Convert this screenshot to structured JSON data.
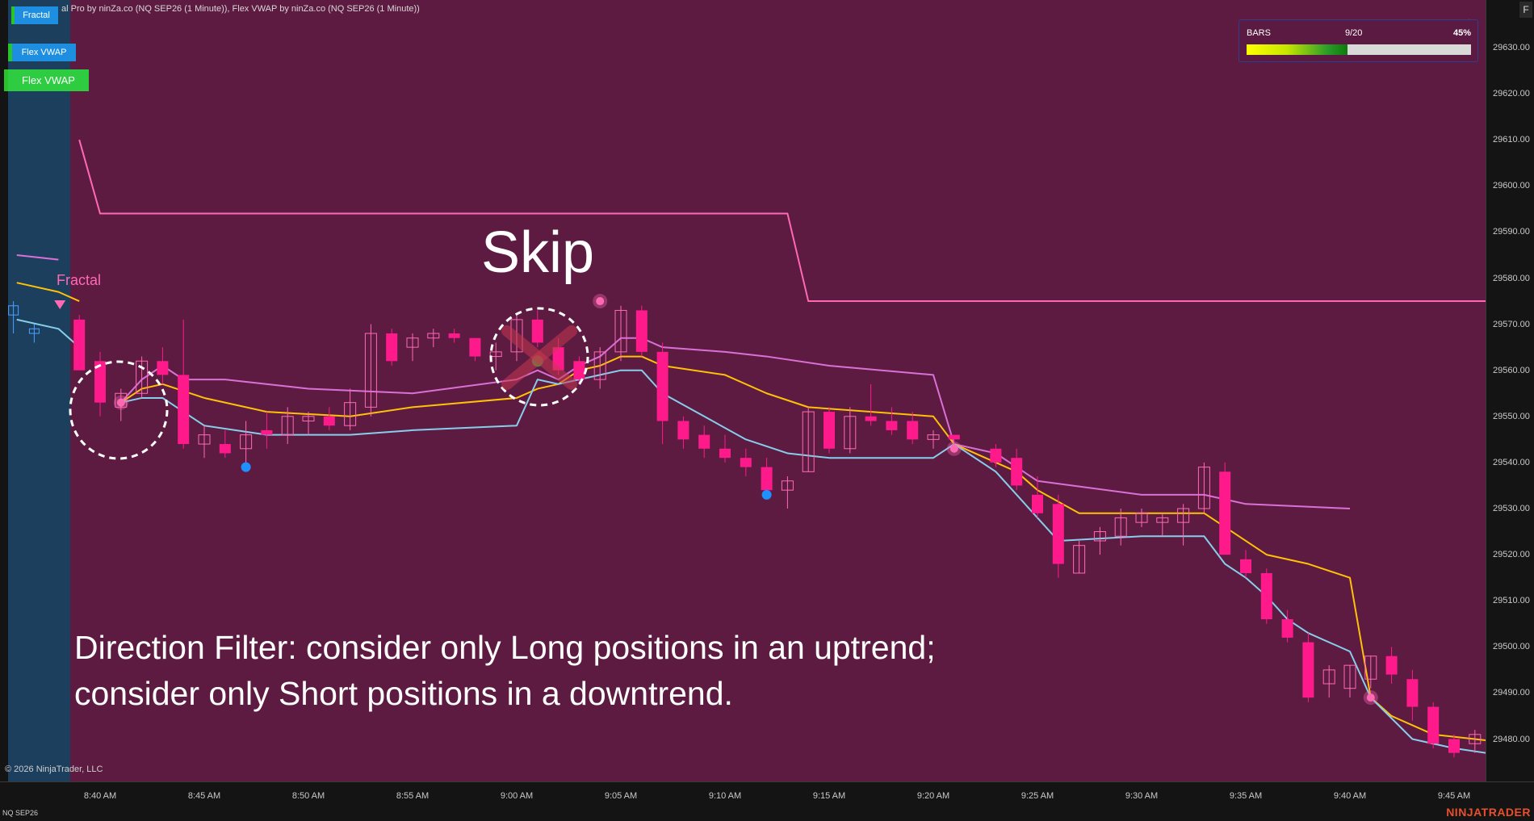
{
  "window": {
    "title": "al Pro by ninZa.co (NQ SEP26 (1 Minute)), Flex VWAP by ninZa.co (NQ SEP26 (1 Minute))",
    "copyright": "© 2026 NinjaTrader, LLC",
    "instrument": "NQ SEP26",
    "brand": "NINJATRADER",
    "corner_button": "F"
  },
  "indicator_buttons": [
    {
      "label": "Fractal"
    },
    {
      "label": "Flex VWAP"
    },
    {
      "label": "Flex VWAP"
    }
  ],
  "bars_panel": {
    "label": "BARS",
    "count": "9/20",
    "percent_text": "45%",
    "progress_fraction": 0.45
  },
  "annotations": {
    "skip": "Skip",
    "fractal": "Fractal",
    "direction_line1": "Direction Filter: consider only Long positions in an uptrend;",
    "direction_line2": "consider only Short positions in a downtrend."
  },
  "colors": {
    "background": "#5e1b42",
    "session_shade": "#1c3f5e",
    "bear_candle": "#ff1a8c",
    "bull_candle": "#ff69b4",
    "vwap_upper": "#da70d6",
    "vwap_mid": "#ffc107",
    "vwap_lower": "#87ceeb",
    "fractal_line": "#ff69b4",
    "blue_dot": "#1e90ff"
  },
  "chart_data": {
    "type": "candlestick",
    "x_tick_labels": [
      "8:40 AM",
      "8:45 AM",
      "8:50 AM",
      "8:55 AM",
      "9:00 AM",
      "9:05 AM",
      "9:10 AM",
      "9:15 AM",
      "9:20 AM",
      "9:25 AM",
      "9:30 AM",
      "9:35 AM",
      "9:40 AM",
      "9:45 AM"
    ],
    "y_tick_labels": [
      "29630.00",
      "29620.00",
      "29610.00",
      "29600.00",
      "29590.00",
      "29580.00",
      "29570.00",
      "29560.00",
      "29550.00",
      "29540.00",
      "29530.00",
      "29520.00",
      "29510.00",
      "29500.00",
      "29490.00",
      "29480.00"
    ],
    "ylim": [
      29474,
      29636
    ],
    "candles": [
      {
        "t": "8:39",
        "o": 29571,
        "h": 29572,
        "l": 29560,
        "c": 29560
      },
      {
        "t": "8:40",
        "o": 29562,
        "h": 29564,
        "l": 29550,
        "c": 29553
      },
      {
        "t": "8:41",
        "o": 29552,
        "h": 29556,
        "l": 29549,
        "c": 29555
      },
      {
        "t": "8:42",
        "o": 29555,
        "h": 29563,
        "l": 29554,
        "c": 29562
      },
      {
        "t": "8:43",
        "o": 29562,
        "h": 29565,
        "l": 29557,
        "c": 29559
      },
      {
        "t": "8:44",
        "o": 29559,
        "h": 29571,
        "l": 29543,
        "c": 29544
      },
      {
        "t": "8:45",
        "o": 29544,
        "h": 29548,
        "l": 29541,
        "c": 29546
      },
      {
        "t": "8:46",
        "o": 29544,
        "h": 29547,
        "l": 29541,
        "c": 29542
      },
      {
        "t": "8:47",
        "o": 29543,
        "h": 29549,
        "l": 29540,
        "c": 29546
      },
      {
        "t": "8:48",
        "o": 29547,
        "h": 29551,
        "l": 29543,
        "c": 29546
      },
      {
        "t": "8:49",
        "o": 29546,
        "h": 29552,
        "l": 29544,
        "c": 29550
      },
      {
        "t": "8:50",
        "o": 29549,
        "h": 29551,
        "l": 29546,
        "c": 29550
      },
      {
        "t": "8:51",
        "o": 29550,
        "h": 29552,
        "l": 29547,
        "c": 29548
      },
      {
        "t": "8:52",
        "o": 29548,
        "h": 29556,
        "l": 29547,
        "c": 29553
      },
      {
        "t": "8:53",
        "o": 29552,
        "h": 29570,
        "l": 29550,
        "c": 29568
      },
      {
        "t": "8:54",
        "o": 29568,
        "h": 29569,
        "l": 29561,
        "c": 29562
      },
      {
        "t": "8:55",
        "o": 29565,
        "h": 29568,
        "l": 29562,
        "c": 29567
      },
      {
        "t": "8:56",
        "o": 29567,
        "h": 29569,
        "l": 29565,
        "c": 29568
      },
      {
        "t": "8:57",
        "o": 29568,
        "h": 29569,
        "l": 29566,
        "c": 29567
      },
      {
        "t": "8:58",
        "o": 29567,
        "h": 29567,
        "l": 29562,
        "c": 29563
      },
      {
        "t": "8:59",
        "o": 29563,
        "h": 29566,
        "l": 29560,
        "c": 29564
      },
      {
        "t": "9:00",
        "o": 29564,
        "h": 29572,
        "l": 29562,
        "c": 29571
      },
      {
        "t": "9:01",
        "o": 29571,
        "h": 29573,
        "l": 29565,
        "c": 29566
      },
      {
        "t": "9:02",
        "o": 29565,
        "h": 29567,
        "l": 29559,
        "c": 29560
      },
      {
        "t": "9:03",
        "o": 29562,
        "h": 29563,
        "l": 29557,
        "c": 29558
      },
      {
        "t": "9:04",
        "o": 29558,
        "h": 29565,
        "l": 29556,
        "c": 29564
      },
      {
        "t": "9:05",
        "o": 29564,
        "h": 29574,
        "l": 29562,
        "c": 29573
      },
      {
        "t": "9:06",
        "o": 29573,
        "h": 29574,
        "l": 29563,
        "c": 29564
      },
      {
        "t": "9:07",
        "o": 29564,
        "h": 29566,
        "l": 29544,
        "c": 29549
      },
      {
        "t": "9:08",
        "o": 29549,
        "h": 29550,
        "l": 29543,
        "c": 29545
      },
      {
        "t": "9:09",
        "o": 29546,
        "h": 29548,
        "l": 29541,
        "c": 29543
      },
      {
        "t": "9:10",
        "o": 29543,
        "h": 29546,
        "l": 29540,
        "c": 29541
      },
      {
        "t": "9:11",
        "o": 29541,
        "h": 29543,
        "l": 29537,
        "c": 29539
      },
      {
        "t": "9:12",
        "o": 29539,
        "h": 29541,
        "l": 29532,
        "c": 29534
      },
      {
        "t": "9:13",
        "o": 29534,
        "h": 29537,
        "l": 29530,
        "c": 29536
      },
      {
        "t": "9:14",
        "o": 29538,
        "h": 29552,
        "l": 29538,
        "c": 29551
      },
      {
        "t": "9:15",
        "o": 29551,
        "h": 29552,
        "l": 29542,
        "c": 29543
      },
      {
        "t": "9:16",
        "o": 29543,
        "h": 29552,
        "l": 29542,
        "c": 29550
      },
      {
        "t": "9:17",
        "o": 29550,
        "h": 29557,
        "l": 29548,
        "c": 29549
      },
      {
        "t": "9:18",
        "o": 29549,
        "h": 29552,
        "l": 29546,
        "c": 29547
      },
      {
        "t": "9:19",
        "o": 29549,
        "h": 29551,
        "l": 29544,
        "c": 29545
      },
      {
        "t": "9:20",
        "o": 29545,
        "h": 29547,
        "l": 29543,
        "c": 29546
      },
      {
        "t": "9:21",
        "o": 29546,
        "h": 29546,
        "l": 29543,
        "c": 29545
      },
      {
        "t": "9:23",
        "o": 29543,
        "h": 29544,
        "l": 29539,
        "c": 29540
      },
      {
        "t": "9:24",
        "o": 29541,
        "h": 29543,
        "l": 29534,
        "c": 29535
      },
      {
        "t": "9:25",
        "o": 29533,
        "h": 29537,
        "l": 29528,
        "c": 29529
      },
      {
        "t": "9:26",
        "o": 29531,
        "h": 29533,
        "l": 29515,
        "c": 29518
      },
      {
        "t": "9:27",
        "o": 29516,
        "h": 29523,
        "l": 29516,
        "c": 29522
      },
      {
        "t": "9:28",
        "o": 29523,
        "h": 29526,
        "l": 29520,
        "c": 29525
      },
      {
        "t": "9:29",
        "o": 29524,
        "h": 29530,
        "l": 29522,
        "c": 29528
      },
      {
        "t": "9:30",
        "o": 29527,
        "h": 29530,
        "l": 29526,
        "c": 29529
      },
      {
        "t": "9:31",
        "o": 29527,
        "h": 29529,
        "l": 29524,
        "c": 29528
      },
      {
        "t": "9:32",
        "o": 29527,
        "h": 29531,
        "l": 29522,
        "c": 29530
      },
      {
        "t": "9:33",
        "o": 29530,
        "h": 29540,
        "l": 29529,
        "c": 29539
      },
      {
        "t": "9:34",
        "o": 29538,
        "h": 29540,
        "l": 29520,
        "c": 29520
      },
      {
        "t": "9:35",
        "o": 29519,
        "h": 29521,
        "l": 29515,
        "c": 29516
      },
      {
        "t": "9:36",
        "o": 29516,
        "h": 29517,
        "l": 29505,
        "c": 29506
      },
      {
        "t": "9:37",
        "o": 29506,
        "h": 29508,
        "l": 29501,
        "c": 29502
      },
      {
        "t": "9:38",
        "o": 29501,
        "h": 29503,
        "l": 29488,
        "c": 29489
      },
      {
        "t": "9:39",
        "o": 29492,
        "h": 29496,
        "l": 29489,
        "c": 29495
      },
      {
        "t": "9:40",
        "o": 29491,
        "h": 29496,
        "l": 29489,
        "c": 29496
      },
      {
        "t": "9:41",
        "o": 29493,
        "h": 29498,
        "l": 29491,
        "c": 29498
      },
      {
        "t": "9:42",
        "o": 29498,
        "h": 29500,
        "l": 29492,
        "c": 29494
      },
      {
        "t": "9:43",
        "o": 29493,
        "h": 29495,
        "l": 29484,
        "c": 29487
      },
      {
        "t": "9:44",
        "o": 29487,
        "h": 29488,
        "l": 29478,
        "c": 29479
      },
      {
        "t": "9:45",
        "o": 29480,
        "h": 29481,
        "l": 29476,
        "c": 29477
      },
      {
        "t": "9:46",
        "o": 29479,
        "h": 29482,
        "l": 29477,
        "c": 29481
      },
      {
        "t": "9:47",
        "o": 29479,
        "h": 29481,
        "l": 29476,
        "c": 29478
      },
      {
        "t": "9:48",
        "o": 29481,
        "h": 29482,
        "l": 29476,
        "c": 29477
      }
    ],
    "early_candles": [
      {
        "t": "8:36",
        "o": 29576,
        "h": 29579,
        "l": 29571,
        "c": 29578
      },
      {
        "t": "8:37",
        "o": 29572,
        "h": 29575,
        "l": 29568,
        "c": 29574
      },
      {
        "t": "8:38",
        "o": 29568,
        "h": 29570,
        "l": 29566,
        "c": 29569
      }
    ],
    "vwap_segments": [
      {
        "upper": [
          [
            29585,
            "8:36"
          ],
          [
            29584,
            "8:38"
          ]
        ],
        "mid": [
          [
            29579,
            "8:36"
          ],
          [
            29577,
            "8:38"
          ],
          [
            29575,
            "8:39"
          ]
        ],
        "lower": [
          [
            29571,
            "8:36"
          ],
          [
            29569,
            "8:38"
          ],
          [
            29565,
            "8:39"
          ]
        ]
      }
    ],
    "vwap_lines": {
      "upper": [
        [
          "8:41",
          29553
        ],
        [
          "8:42",
          29558
        ],
        [
          "8:43",
          29561
        ],
        [
          "8:44",
          29558
        ],
        [
          "8:46",
          29558
        ],
        [
          "8:50",
          29556
        ],
        [
          "8:55",
          29555
        ],
        [
          "9:00",
          29558
        ],
        [
          "9:01",
          29560
        ],
        [
          "9:02",
          29558
        ],
        [
          "9:03",
          29561
        ],
        [
          "9:04",
          29563
        ],
        [
          "9:05",
          29567
        ],
        [
          "9:06",
          29567
        ],
        [
          "9:07",
          29565
        ],
        [
          "9:10",
          29564
        ],
        [
          "9:12",
          29563
        ],
        [
          "9:15",
          29561
        ],
        [
          "9:20",
          29559
        ],
        [
          "9:21",
          29544
        ],
        [
          "9:23",
          29542
        ],
        [
          "9:25",
          29536
        ],
        [
          "9:30",
          29533
        ],
        [
          "9:33",
          29533
        ],
        [
          "9:35",
          29531
        ],
        [
          "9:40",
          29530
        ]
      ],
      "mid": [
        [
          "8:41",
          29553
        ],
        [
          "8:42",
          29556
        ],
        [
          "8:43",
          29557
        ],
        [
          "8:45",
          29554
        ],
        [
          "8:48",
          29551
        ],
        [
          "8:52",
          29550
        ],
        [
          "8:55",
          29552
        ],
        [
          "9:00",
          29554
        ],
        [
          "9:01",
          29556
        ],
        [
          "9:02",
          29557
        ],
        [
          "9:03",
          29560
        ],
        [
          "9:04",
          29561
        ],
        [
          "9:05",
          29563
        ],
        [
          "9:06",
          29563
        ],
        [
          "9:07",
          29561
        ],
        [
          "9:10",
          29559
        ],
        [
          "9:12",
          29555
        ],
        [
          "9:14",
          29552
        ],
        [
          "9:20",
          29550
        ],
        [
          "9:21",
          29544
        ],
        [
          "9:24",
          29538
        ],
        [
          "9:25",
          29534
        ],
        [
          "9:27",
          29529
        ],
        [
          "9:30",
          29529
        ],
        [
          "9:33",
          29529
        ],
        [
          "9:34",
          29526
        ],
        [
          "9:35",
          29523
        ],
        [
          "9:36",
          29520
        ],
        [
          "9:38",
          29518
        ],
        [
          "9:40",
          29515
        ],
        [
          "9:41",
          29489
        ],
        [
          "9:42",
          29485
        ],
        [
          "9:44",
          29481
        ],
        [
          "9:48",
          29479
        ]
      ],
      "lower": [
        [
          "8:41",
          29553
        ],
        [
          "8:42",
          29554
        ],
        [
          "8:43",
          29554
        ],
        [
          "8:45",
          29548
        ],
        [
          "8:48",
          29546
        ],
        [
          "8:52",
          29546
        ],
        [
          "8:55",
          29547
        ],
        [
          "9:00",
          29548
        ],
        [
          "9:01",
          29558
        ],
        [
          "9:02",
          29557
        ],
        [
          "9:03",
          29558
        ],
        [
          "9:04",
          29559
        ],
        [
          "9:05",
          29560
        ],
        [
          "9:06",
          29560
        ],
        [
          "9:07",
          29555
        ],
        [
          "9:09",
          29550
        ],
        [
          "9:11",
          29545
        ],
        [
          "9:13",
          29542
        ],
        [
          "9:15",
          29541
        ],
        [
          "9:20",
          29541
        ],
        [
          "9:21",
          29544
        ],
        [
          "9:23",
          29538
        ],
        [
          "9:25",
          29528
        ],
        [
          "9:26",
          29523
        ],
        [
          "9:30",
          29524
        ],
        [
          "9:33",
          29524
        ],
        [
          "9:34",
          29518
        ],
        [
          "9:35",
          29515
        ],
        [
          "9:36",
          29511
        ],
        [
          "9:37",
          29506
        ],
        [
          "9:38",
          29503
        ],
        [
          "9:40",
          29499
        ],
        [
          "9:41",
          29489
        ],
        [
          "9:43",
          29480
        ],
        [
          "9:45",
          29478
        ],
        [
          "9:48",
          29476
        ]
      ]
    },
    "vwap_upper_tail": [
      [
        "9:21",
        29544
      ],
      [
        "9:25",
        29536
      ],
      [
        "9:30",
        29533
      ],
      [
        "9:33",
        29533
      ],
      [
        "9:40",
        29530
      ]
    ],
    "fractal_line": [
      [
        "8:39",
        29610
      ],
      [
        "8:40",
        29594
      ],
      [
        "9:13",
        29594
      ],
      [
        "9:14",
        29575
      ],
      [
        "9:48",
        29575
      ]
    ],
    "fractal_markers": [
      {
        "t": "8:41",
        "price": 29553,
        "type": "pink"
      },
      {
        "t": "9:01",
        "price": 29562,
        "type": "green"
      },
      {
        "t": "9:04",
        "price": 29575,
        "type": "pink"
      },
      {
        "t": "9:21",
        "price": 29543,
        "type": "pink"
      },
      {
        "t": "9:41",
        "price": 29489,
        "type": "pink"
      }
    ],
    "blue_dots": [
      {
        "t": "8:47",
        "price": 29539
      },
      {
        "t": "9:12",
        "price": 29533
      }
    ],
    "fractal_triangle": {
      "t": "8:39",
      "price": 29575
    }
  }
}
